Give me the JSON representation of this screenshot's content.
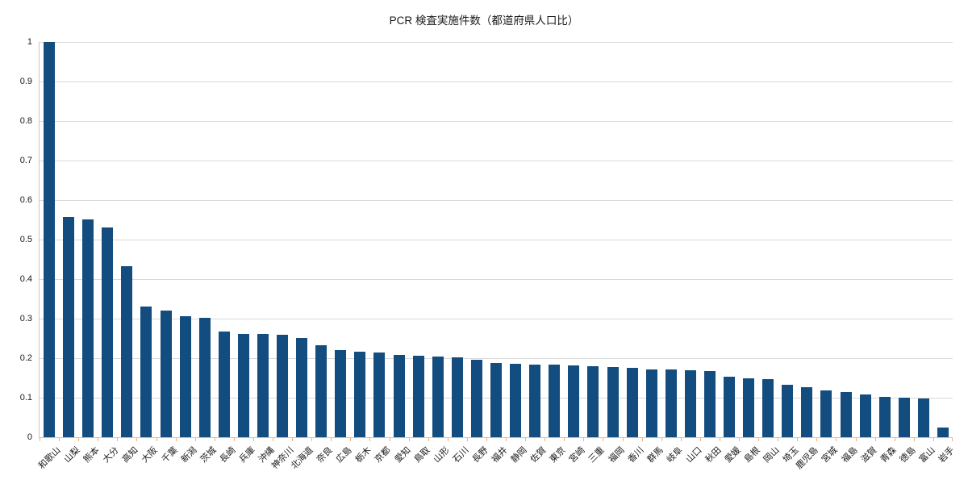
{
  "chart_data": {
    "type": "bar",
    "title": "PCR 検査実施件数（都道府県人口比）",
    "xlabel": "",
    "ylabel": "",
    "ylim": [
      0,
      1
    ],
    "ytick_step": 0.1,
    "ytick_labels_top_down": [
      "1",
      "0.9",
      "0.8",
      "0.7",
      "0.6",
      "0.5",
      "0.4",
      "0.3",
      "0.2",
      "0.1",
      "0"
    ],
    "grid": true,
    "legend": "none",
    "x_label_rotation_deg": 45,
    "categories": [
      "和歌山",
      "山梨",
      "熊本",
      "大分",
      "高知",
      "大阪",
      "千葉",
      "新潟",
      "茨城",
      "長崎",
      "兵庫",
      "沖縄",
      "神奈川",
      "北海道",
      "奈良",
      "広島",
      "栃木",
      "京都",
      "愛知",
      "鳥取",
      "山形",
      "石川",
      "長野",
      "福井",
      "静岡",
      "佐賀",
      "東京",
      "宮崎",
      "三重",
      "福岡",
      "香川",
      "群馬",
      "岐阜",
      "山口",
      "秋田",
      "愛媛",
      "島根",
      "岡山",
      "埼玉",
      "鹿児島",
      "宮城",
      "福島",
      "滋賀",
      "青森",
      "徳島",
      "富山",
      "岩手"
    ],
    "values": [
      1.0,
      0.557,
      0.551,
      0.53,
      0.432,
      0.331,
      0.32,
      0.306,
      0.302,
      0.267,
      0.262,
      0.261,
      0.26,
      0.251,
      0.232,
      0.22,
      0.217,
      0.215,
      0.208,
      0.206,
      0.204,
      0.202,
      0.196,
      0.187,
      0.185,
      0.184,
      0.184,
      0.182,
      0.18,
      0.177,
      0.175,
      0.172,
      0.171,
      0.17,
      0.168,
      0.154,
      0.149,
      0.146,
      0.133,
      0.127,
      0.118,
      0.114,
      0.108,
      0.103,
      0.1,
      0.098,
      0.025
    ],
    "colors": {
      "bar": "#134C7E",
      "gridline": "#d9d9d9",
      "axis_line": "#c6c6c6",
      "x_tick": "#f0b183",
      "text": "#1a1a1a"
    }
  }
}
